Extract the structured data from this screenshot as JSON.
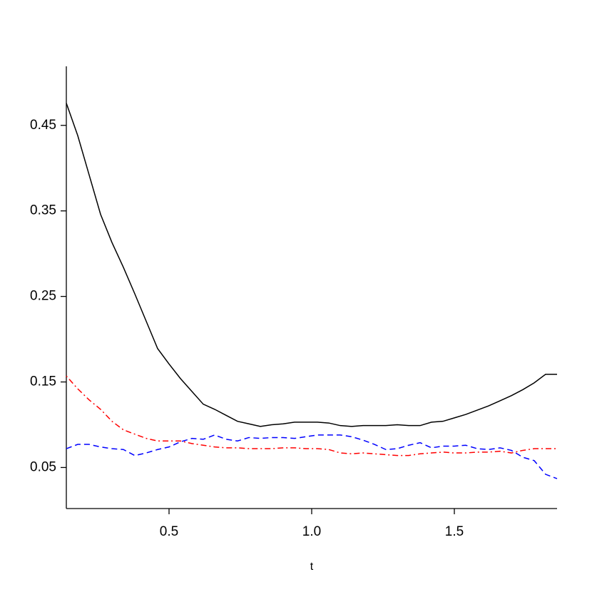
{
  "chart_data": {
    "type": "line",
    "xlabel": "t",
    "x": [
      0.14,
      0.18,
      0.22,
      0.26,
      0.3,
      0.34,
      0.38,
      0.42,
      0.46,
      0.5,
      0.54,
      0.58,
      0.62,
      0.66,
      0.7,
      0.74,
      0.78,
      0.82,
      0.86,
      0.9,
      0.94,
      0.98,
      1.02,
      1.06,
      1.1,
      1.14,
      1.18,
      1.22,
      1.26,
      1.3,
      1.34,
      1.38,
      1.42,
      1.46,
      1.5,
      1.54,
      1.58,
      1.62,
      1.66,
      1.7,
      1.74,
      1.78,
      1.82,
      1.86
    ],
    "series": [
      {
        "color": "#000000",
        "dash": "solid",
        "values": [
          0.476,
          0.438,
          0.392,
          0.346,
          0.313,
          0.284,
          0.253,
          0.221,
          0.189,
          0.171,
          0.154,
          0.139,
          0.124,
          0.118,
          0.111,
          0.104,
          0.101,
          0.098,
          0.1,
          0.101,
          0.103,
          0.103,
          0.103,
          0.102,
          0.099,
          0.098,
          0.099,
          0.099,
          0.099,
          0.1,
          0.099,
          0.099,
          0.103,
          0.104,
          0.108,
          0.112,
          0.117,
          0.122,
          0.128,
          0.134,
          0.141,
          0.149,
          0.159,
          0.159
        ]
      },
      {
        "color": "#ff0000",
        "dash": "dotdash",
        "values": [
          0.157,
          0.142,
          0.129,
          0.118,
          0.104,
          0.094,
          0.089,
          0.084,
          0.081,
          0.081,
          0.081,
          0.078,
          0.076,
          0.074,
          0.073,
          0.073,
          0.072,
          0.072,
          0.072,
          0.073,
          0.073,
          0.072,
          0.072,
          0.071,
          0.067,
          0.066,
          0.067,
          0.066,
          0.065,
          0.064,
          0.064,
          0.066,
          0.067,
          0.068,
          0.067,
          0.067,
          0.068,
          0.068,
          0.069,
          0.067,
          0.07,
          0.072,
          0.072,
          0.072
        ]
      },
      {
        "color": "#0000ff",
        "dash": "dashed",
        "values": [
          0.072,
          0.077,
          0.077,
          0.074,
          0.072,
          0.071,
          0.064,
          0.067,
          0.071,
          0.074,
          0.08,
          0.084,
          0.083,
          0.088,
          0.083,
          0.081,
          0.085,
          0.084,
          0.085,
          0.085,
          0.084,
          0.086,
          0.088,
          0.088,
          0.088,
          0.086,
          0.082,
          0.077,
          0.071,
          0.072,
          0.076,
          0.079,
          0.073,
          0.075,
          0.075,
          0.076,
          0.072,
          0.071,
          0.073,
          0.07,
          0.062,
          0.058,
          0.042,
          0.037
        ]
      }
    ],
    "xlim": [
      0.14,
      1.86
    ],
    "xticks": [
      0.5,
      {
        "value": 1,
        "label": "1.0"
      },
      1.5
    ],
    "ylim": [
      0.002,
      0.519
    ],
    "yticks": [
      0.05,
      0.15,
      0.25,
      0.35,
      0.45
    ]
  }
}
